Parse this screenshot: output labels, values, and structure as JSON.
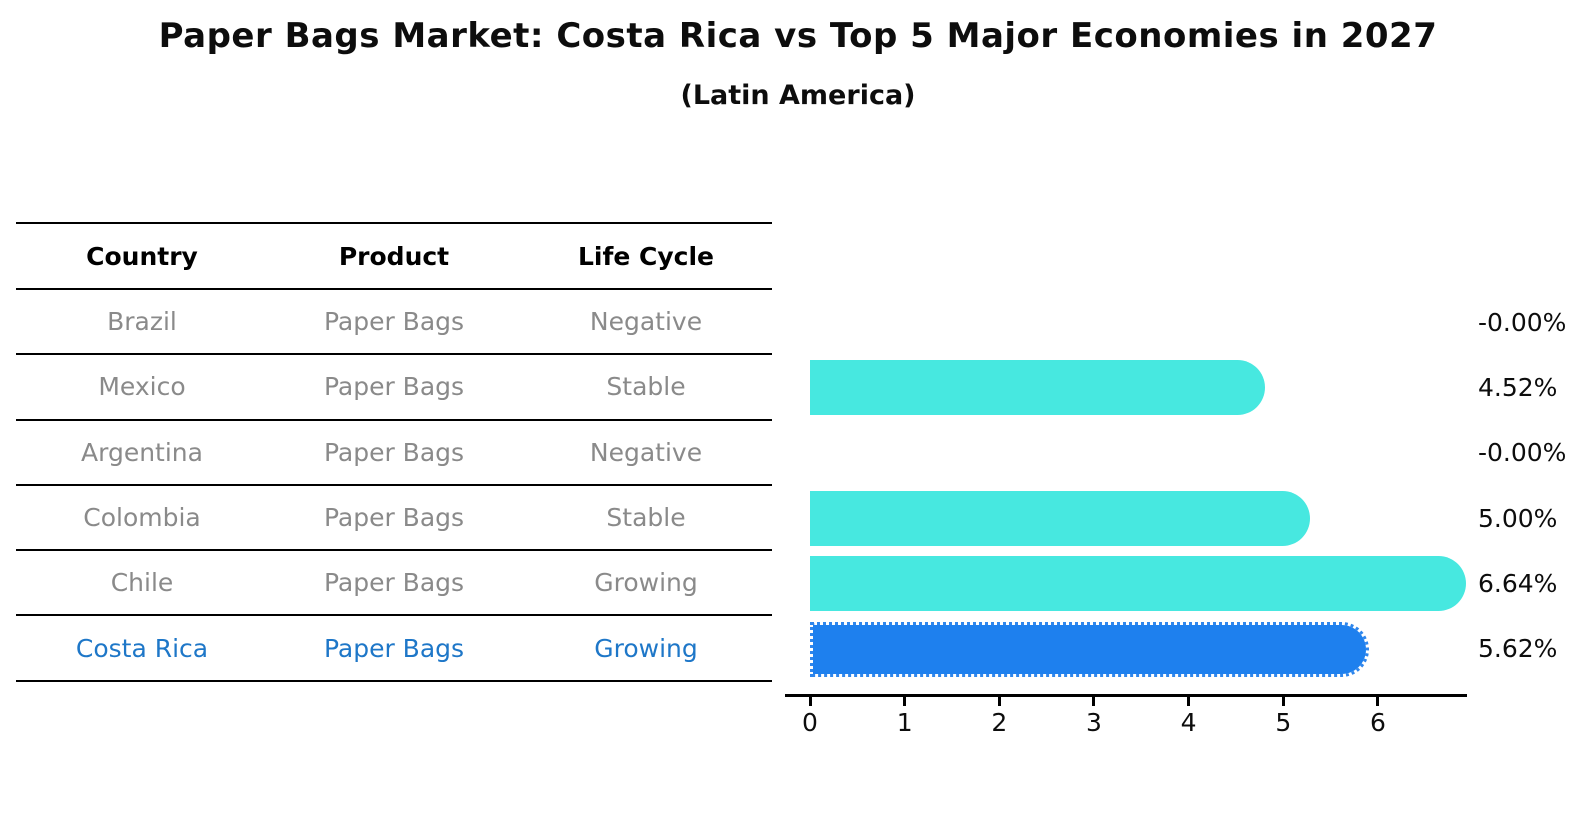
{
  "title": "Paper Bags Market: Costa Rica vs Top 5 Major Economies in 2027",
  "subtitle": "(Latin America)",
  "table": {
    "headers": [
      "Country",
      "Product",
      "Life Cycle"
    ],
    "rows": [
      {
        "country": "Brazil",
        "product": "Paper Bags",
        "life_cycle": "Negative",
        "highlight": false
      },
      {
        "country": "Mexico",
        "product": "Paper Bags",
        "life_cycle": "Stable",
        "highlight": false
      },
      {
        "country": "Argentina",
        "product": "Paper Bags",
        "life_cycle": "Negative",
        "highlight": false
      },
      {
        "country": "Colombia",
        "product": "Paper Bags",
        "life_cycle": "Stable",
        "highlight": false
      },
      {
        "country": "Chile",
        "product": "Paper Bags",
        "life_cycle": "Growing",
        "highlight": false
      },
      {
        "country": "Costa Rica",
        "product": "Paper Bags",
        "life_cycle": "Growing",
        "highlight": true
      }
    ]
  },
  "chart_data": {
    "type": "bar",
    "orientation": "horizontal",
    "title": "Paper Bags Market: Costa Rica vs Top 5 Major Economies in 2027",
    "subtitle": "(Latin America)",
    "categories": [
      "Brazil",
      "Mexico",
      "Argentina",
      "Colombia",
      "Chile",
      "Costa Rica"
    ],
    "values": [
      -0.0,
      4.52,
      -0.0,
      5.0,
      6.64,
      5.62
    ],
    "value_labels": [
      "-0.00%",
      "4.52%",
      "-0.00%",
      "5.00%",
      "6.64%",
      "5.62%"
    ],
    "x_ticks": [
      0,
      1,
      2,
      3,
      4,
      5,
      6
    ],
    "xlim": [
      0,
      6.7
    ],
    "grid": false,
    "legend": false,
    "highlight_index": 5,
    "bar_color": "#47E8E0",
    "highlight_color": "#1E80EE",
    "highlight_edge_style": "dotted",
    "highlight_text_color": "#1E77C8",
    "table_text_color": "#8a8a8a",
    "axis_color": "#000000"
  }
}
